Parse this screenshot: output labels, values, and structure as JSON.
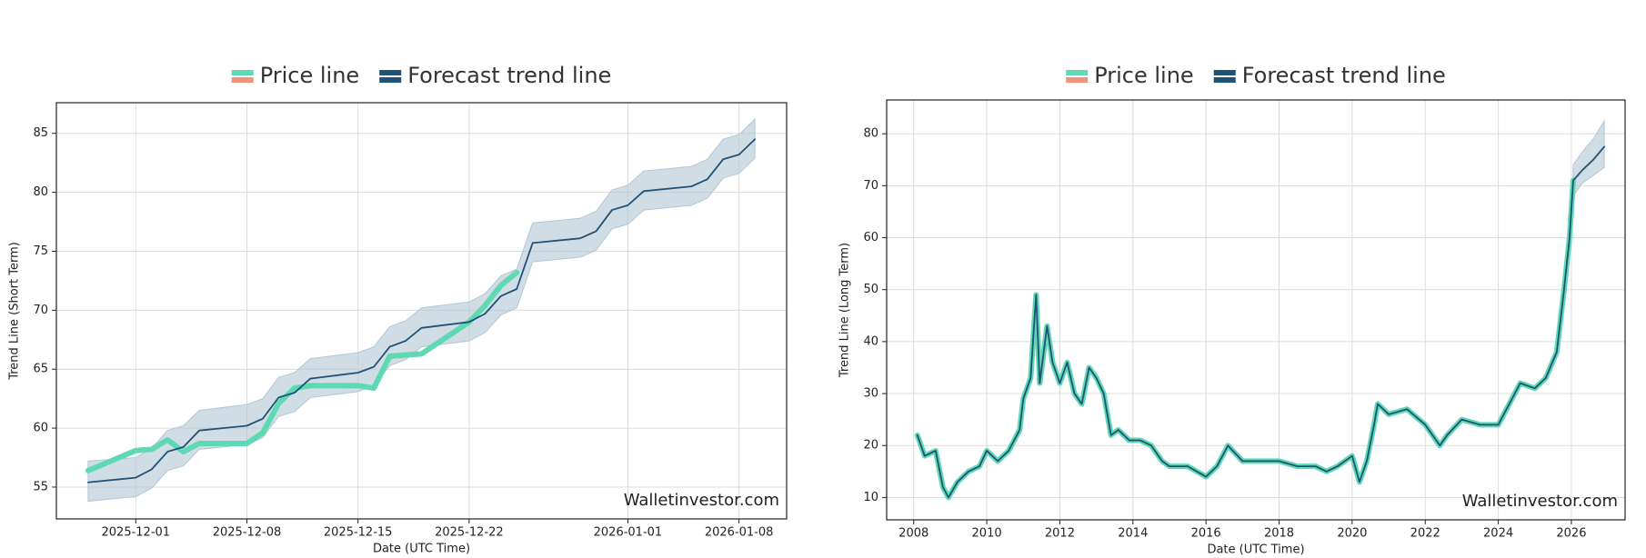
{
  "chart_data": [
    {
      "type": "line",
      "legend": true,
      "grid": true,
      "x": [
        "2025-11-28",
        "2025-12-01",
        "2025-12-02",
        "2025-12-03",
        "2025-12-04",
        "2025-12-05",
        "2025-12-08",
        "2025-12-09",
        "2025-12-10",
        "2025-12-11",
        "2025-12-12",
        "2025-12-15",
        "2025-12-16",
        "2025-12-17",
        "2025-12-18",
        "2025-12-19",
        "2025-12-22",
        "2025-12-23",
        "2025-12-24",
        "2025-12-25",
        "2025-12-26",
        "2025-12-29",
        "2025-12-30",
        "2025-12-31",
        "2026-01-01",
        "2026-01-02",
        "2026-01-05",
        "2026-01-06",
        "2026-01-07",
        "2026-01-08",
        "2026-01-09"
      ],
      "series": [
        {
          "name": "Price line",
          "color": "#5fd9b3",
          "values": [
            56.4,
            58.1,
            58.2,
            59.0,
            58.0,
            58.7,
            58.7,
            59.6,
            62.1,
            63.4,
            63.6,
            63.6,
            63.4,
            66.1,
            66.2,
            66.3,
            69.0,
            70.4,
            72.1,
            73.2,
            null,
            null,
            null,
            null,
            null,
            null,
            null,
            null,
            null,
            null,
            null
          ]
        },
        {
          "name": "Forecast trend line",
          "color": "#1f5278",
          "values": [
            55.4,
            55.8,
            56.5,
            58.0,
            58.4,
            59.8,
            60.2,
            60.8,
            62.6,
            63.0,
            64.2,
            64.7,
            65.2,
            66.9,
            67.4,
            68.5,
            69.0,
            69.7,
            71.2,
            71.8,
            75.7,
            76.1,
            76.7,
            78.5,
            78.9,
            80.1,
            80.5,
            81.1,
            82.8,
            83.2,
            84.5
          ]
        }
      ],
      "band": {
        "color": "#b3c6d4",
        "upper": [
          57.2,
          57.5,
          58.3,
          59.8,
          60.2,
          61.5,
          62.0,
          62.5,
          64.3,
          64.7,
          65.9,
          66.4,
          66.9,
          68.6,
          69.1,
          70.2,
          70.7,
          71.4,
          72.9,
          73.5,
          77.4,
          77.8,
          78.4,
          80.2,
          80.6,
          81.8,
          82.2,
          82.8,
          84.5,
          84.9,
          86.2
        ],
        "lower": [
          53.8,
          54.2,
          54.9,
          56.4,
          56.8,
          58.2,
          58.6,
          59.2,
          61.0,
          61.4,
          62.6,
          63.1,
          63.6,
          65.3,
          65.8,
          66.9,
          67.4,
          68.1,
          69.6,
          70.2,
          74.1,
          74.5,
          75.1,
          76.9,
          77.3,
          78.5,
          78.9,
          79.5,
          81.2,
          81.6,
          82.9
        ]
      },
      "xlim": [
        "2025-11-26",
        "2026-01-11"
      ],
      "xticks": [
        "2025-12-01",
        "2025-12-08",
        "2025-12-15",
        "2025-12-22",
        "2026-01-01",
        "2026-01-08"
      ],
      "ylim": [
        52.3,
        87.6
      ],
      "yticks": [
        55,
        60,
        65,
        70,
        75,
        80,
        85
      ],
      "x_label": "Date (UTC Time)",
      "y_label": "Trend Line (Short Term)",
      "watermark": "Walletinvestor.com"
    },
    {
      "type": "line",
      "legend": true,
      "grid": true,
      "x": [
        2008.1,
        2008.3,
        2008.6,
        2008.8,
        2008.95,
        2009.2,
        2009.5,
        2009.8,
        2010.0,
        2010.3,
        2010.6,
        2010.9,
        2011.0,
        2011.2,
        2011.35,
        2011.45,
        2011.65,
        2011.8,
        2012.0,
        2012.2,
        2012.4,
        2012.6,
        2012.8,
        2013.0,
        2013.2,
        2013.4,
        2013.6,
        2013.9,
        2014.2,
        2014.5,
        2014.8,
        2015.0,
        2015.5,
        2016.0,
        2016.3,
        2016.6,
        2017.0,
        2017.5,
        2018.0,
        2018.5,
        2019.0,
        2019.3,
        2019.6,
        2020.0,
        2020.2,
        2020.4,
        2020.6,
        2020.7,
        2021.0,
        2021.5,
        2022.0,
        2022.4,
        2022.6,
        2023.0,
        2023.5,
        2024.0,
        2024.3,
        2024.6,
        2025.0,
        2025.3,
        2025.6,
        2025.8,
        2025.95,
        2026.05,
        2026.3,
        2026.6,
        2026.9
      ],
      "series": [
        {
          "name": "Price line",
          "color": "#5fd9b3",
          "values": [
            22,
            18,
            19,
            12,
            10,
            13,
            15,
            16,
            19,
            17,
            19,
            23,
            29,
            33,
            49,
            32,
            43,
            36,
            32,
            36,
            30,
            28,
            35,
            33,
            30,
            22,
            23,
            21,
            21,
            20,
            17,
            16,
            16,
            14,
            16,
            20,
            17,
            17,
            17,
            16,
            16,
            15,
            16,
            18,
            13,
            17,
            24,
            28,
            26,
            27,
            24,
            20,
            22,
            25,
            24,
            24,
            28,
            32,
            31,
            33,
            38,
            50,
            60,
            71,
            null,
            null,
            null
          ]
        },
        {
          "name": "Forecast trend line",
          "color": "#1f5278",
          "values": [
            22,
            18,
            19,
            12,
            10,
            13,
            15,
            16,
            19,
            17,
            19,
            23,
            29,
            33,
            49,
            32,
            43,
            36,
            32,
            36,
            30,
            28,
            35,
            33,
            30,
            22,
            23,
            21,
            21,
            20,
            17,
            16,
            16,
            14,
            16,
            20,
            17,
            17,
            17,
            16,
            16,
            15,
            16,
            18,
            13,
            17,
            24,
            28,
            26,
            27,
            24,
            20,
            22,
            25,
            24,
            24,
            28,
            32,
            31,
            33,
            38,
            50,
            60,
            71,
            73,
            75,
            77.5
          ]
        }
      ],
      "band": {
        "color": "#b3c6d4",
        "upper": [
          null,
          null,
          null,
          null,
          null,
          null,
          null,
          null,
          null,
          null,
          null,
          null,
          null,
          null,
          null,
          null,
          null,
          null,
          null,
          null,
          null,
          null,
          null,
          null,
          null,
          null,
          null,
          null,
          null,
          null,
          null,
          null,
          null,
          null,
          null,
          null,
          null,
          null,
          null,
          null,
          null,
          null,
          null,
          null,
          null,
          null,
          null,
          null,
          null,
          null,
          null,
          null,
          null,
          null,
          null,
          null,
          null,
          null,
          null,
          null,
          null,
          null,
          null,
          74,
          76.5,
          79,
          82.5
        ],
        "lower": [
          null,
          null,
          null,
          null,
          null,
          null,
          null,
          null,
          null,
          null,
          null,
          null,
          null,
          null,
          null,
          null,
          null,
          null,
          null,
          null,
          null,
          null,
          null,
          null,
          null,
          null,
          null,
          null,
          null,
          null,
          null,
          null,
          null,
          null,
          null,
          null,
          null,
          null,
          null,
          null,
          null,
          null,
          null,
          null,
          null,
          null,
          null,
          null,
          null,
          null,
          null,
          null,
          null,
          null,
          null,
          null,
          null,
          null,
          null,
          null,
          null,
          null,
          null,
          68,
          70.5,
          72,
          73.5
        ]
      },
      "xlim": [
        2007.26,
        2027.47
      ],
      "xticks": [
        2008,
        2010,
        2012,
        2014,
        2016,
        2018,
        2020,
        2022,
        2024,
        2026
      ],
      "ylim": [
        5.7,
        86.5
      ],
      "yticks": [
        10,
        20,
        30,
        40,
        50,
        60,
        70,
        80
      ],
      "x_label": "Date (UTC Time)",
      "y_label": "Trend Line (Long Term)",
      "watermark": "Walletinvestor.com"
    }
  ]
}
